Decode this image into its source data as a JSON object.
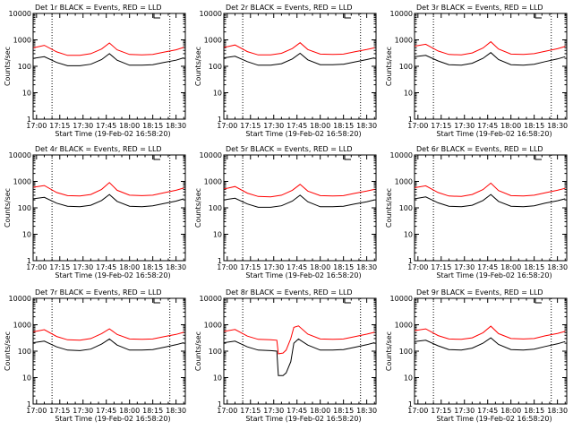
{
  "chart_data": [
    {
      "type": "line",
      "title": "Det 1r BLACK = Events, RED = LLD",
      "xlabel": "Start Time (19-Feb-02 16:58:20)",
      "ylabel": "Counts/sec",
      "x_tick_labels": [
        "17:00",
        "17:15",
        "17:30",
        "17:45",
        "18:00",
        "18:15",
        "18:30"
      ],
      "y_tick_labels": [
        "1",
        "10",
        "100",
        "1000",
        "10000"
      ],
      "x": [
        "16:58",
        "17:05",
        "17:13",
        "17:20",
        "17:28",
        "17:35",
        "17:42",
        "17:47",
        "17:52",
        "18:00",
        "18:08",
        "18:15",
        "18:22",
        "18:30",
        "18:35"
      ],
      "series": [
        {
          "color": "#000000",
          "values": [
            200,
            230,
            140,
            105,
            105,
            120,
            180,
            300,
            170,
            110,
            110,
            115,
            140,
            170,
            210
          ]
        },
        {
          "color": "#ff0000",
          "values": [
            500,
            620,
            350,
            260,
            260,
            300,
            450,
            760,
            420,
            280,
            270,
            280,
            340,
            420,
            520
          ]
        }
      ],
      "ylim": [
        1,
        10000
      ],
      "yscale": "log",
      "dotted_vlines": [
        "17:10",
        "18:26"
      ]
    },
    {
      "type": "line",
      "title": "Det 2r BLACK = Events, RED = LLD",
      "xlabel": "Start Time (19-Feb-02 16:58:20)",
      "ylabel": "Counts/sec",
      "x_tick_labels": [
        "17:00",
        "17:15",
        "17:30",
        "17:45",
        "18:00",
        "18:15",
        "18:30"
      ],
      "y_tick_labels": [
        "1",
        "10",
        "100",
        "1000",
        "10000"
      ],
      "x": [
        "16:58",
        "17:05",
        "17:13",
        "17:20",
        "17:28",
        "17:35",
        "17:42",
        "17:47",
        "17:52",
        "18:00",
        "18:08",
        "18:15",
        "18:22",
        "18:30",
        "18:35"
      ],
      "series": [
        {
          "color": "#000000",
          "values": [
            210,
            240,
            150,
            110,
            110,
            125,
            190,
            310,
            175,
            115,
            115,
            120,
            145,
            180,
            210
          ]
        },
        {
          "color": "#ff0000",
          "values": [
            520,
            640,
            360,
            270,
            270,
            310,
            470,
            780,
            430,
            290,
            280,
            290,
            350,
            430,
            500
          ]
        }
      ],
      "ylim": [
        1,
        10000
      ],
      "yscale": "log",
      "dotted_vlines": [
        "17:10",
        "18:26"
      ]
    },
    {
      "type": "line",
      "title": "Det 3r BLACK = Events, RED = LLD",
      "xlabel": "Start Time (19-Feb-02 16:58:20)",
      "ylabel": "Counts/sec",
      "x_tick_labels": [
        "17:00",
        "17:15",
        "17:30",
        "17:45",
        "18:00",
        "18:15",
        "18:30"
      ],
      "y_tick_labels": [
        "1",
        "10",
        "100",
        "1000",
        "10000"
      ],
      "x": [
        "16:58",
        "17:05",
        "17:13",
        "17:20",
        "17:28",
        "17:35",
        "17:42",
        "17:47",
        "17:52",
        "18:00",
        "18:08",
        "18:15",
        "18:22",
        "18:30",
        "18:35"
      ],
      "series": [
        {
          "color": "#000000",
          "values": [
            230,
            260,
            160,
            115,
            110,
            130,
            200,
            330,
            180,
            115,
            110,
            120,
            150,
            190,
            230
          ]
        },
        {
          "color": "#ff0000",
          "values": [
            580,
            680,
            380,
            280,
            270,
            320,
            490,
            850,
            450,
            290,
            280,
            300,
            370,
            460,
            560
          ]
        }
      ],
      "ylim": [
        1,
        10000
      ],
      "yscale": "log",
      "dotted_vlines": [
        "17:10",
        "18:26"
      ]
    },
    {
      "type": "line",
      "title": "Det 4r BLACK = Events, RED = LLD",
      "xlabel": "Start Time (19-Feb-02 16:58:20)",
      "ylabel": "Counts/sec",
      "x_tick_labels": [
        "17:00",
        "17:15",
        "17:30",
        "17:45",
        "18:00",
        "18:15",
        "18:30"
      ],
      "y_tick_labels": [
        "1",
        "10",
        "100",
        "1000",
        "10000"
      ],
      "x": [
        "16:58",
        "17:05",
        "17:13",
        "17:20",
        "17:28",
        "17:35",
        "17:42",
        "17:47",
        "17:52",
        "18:00",
        "18:08",
        "18:15",
        "18:22",
        "18:30",
        "18:35"
      ],
      "series": [
        {
          "color": "#000000",
          "values": [
            220,
            250,
            150,
            115,
            110,
            125,
            190,
            320,
            175,
            115,
            110,
            120,
            145,
            180,
            220
          ]
        },
        {
          "color": "#ff0000",
          "values": [
            600,
            700,
            380,
            290,
            280,
            320,
            500,
            900,
            460,
            300,
            290,
            300,
            370,
            460,
            560
          ]
        }
      ],
      "ylim": [
        1,
        10000
      ],
      "yscale": "log",
      "dotted_vlines": [
        "17:10",
        "18:26"
      ]
    },
    {
      "type": "line",
      "title": "Det 5r BLACK = Events, RED = LLD",
      "xlabel": "Start Time (19-Feb-02 16:58:20)",
      "ylabel": "Counts/sec",
      "x_tick_labels": [
        "17:00",
        "17:15",
        "17:30",
        "17:45",
        "18:00",
        "18:15",
        "18:30"
      ],
      "y_tick_labels": [
        "1",
        "10",
        "100",
        "1000",
        "10000"
      ],
      "x": [
        "16:58",
        "17:05",
        "17:13",
        "17:20",
        "17:28",
        "17:35",
        "17:42",
        "17:47",
        "17:52",
        "18:00",
        "18:08",
        "18:15",
        "18:22",
        "18:30",
        "18:35"
      ],
      "series": [
        {
          "color": "#000000",
          "values": [
            200,
            230,
            140,
            105,
            105,
            120,
            180,
            300,
            170,
            110,
            110,
            115,
            140,
            170,
            200
          ]
        },
        {
          "color": "#ff0000",
          "values": [
            520,
            640,
            360,
            270,
            260,
            300,
            460,
            770,
            430,
            290,
            280,
            290,
            350,
            430,
            500
          ]
        }
      ],
      "ylim": [
        1,
        10000
      ],
      "yscale": "log",
      "dotted_vlines": [
        "17:10",
        "18:26"
      ]
    },
    {
      "type": "line",
      "title": "Det 6r BLACK = Events, RED = LLD",
      "xlabel": "Start Time (19-Feb-02 16:58:20)",
      "ylabel": "Counts/sec",
      "x_tick_labels": [
        "17:00",
        "17:15",
        "17:30",
        "17:45",
        "18:00",
        "18:15",
        "18:30"
      ],
      "y_tick_labels": [
        "1",
        "10",
        "100",
        "1000",
        "10000"
      ],
      "x": [
        "16:58",
        "17:05",
        "17:13",
        "17:20",
        "17:28",
        "17:35",
        "17:42",
        "17:47",
        "17:52",
        "18:00",
        "18:08",
        "18:15",
        "18:22",
        "18:30",
        "18:35"
      ],
      "series": [
        {
          "color": "#000000",
          "values": [
            220,
            260,
            155,
            115,
            110,
            125,
            190,
            320,
            175,
            115,
            110,
            120,
            150,
            185,
            220
          ]
        },
        {
          "color": "#ff0000",
          "values": [
            580,
            680,
            380,
            280,
            270,
            320,
            490,
            860,
            450,
            290,
            280,
            300,
            370,
            460,
            550
          ]
        }
      ],
      "ylim": [
        1,
        10000
      ],
      "yscale": "log",
      "dotted_vlines": [
        "17:10",
        "18:26"
      ]
    },
    {
      "type": "line",
      "title": "Det 7r BLACK = Events, RED = LLD",
      "xlabel": "Start Time (19-Feb-02 16:58:20)",
      "ylabel": "Counts/sec",
      "x_tick_labels": [
        "17:00",
        "17:15",
        "17:30",
        "17:45",
        "18:00",
        "18:15",
        "18:30"
      ],
      "y_tick_labels": [
        "1",
        "10",
        "100",
        "1000",
        "10000"
      ],
      "x": [
        "16:58",
        "17:05",
        "17:13",
        "17:20",
        "17:28",
        "17:35",
        "17:42",
        "17:47",
        "17:52",
        "18:00",
        "18:08",
        "18:15",
        "18:22",
        "18:30",
        "18:35"
      ],
      "series": [
        {
          "color": "#000000",
          "values": [
            210,
            240,
            145,
            110,
            105,
            120,
            185,
            290,
            170,
            110,
            110,
            115,
            140,
            175,
            210
          ]
        },
        {
          "color": "#ff0000",
          "values": [
            540,
            650,
            360,
            270,
            260,
            300,
            460,
            700,
            430,
            290,
            280,
            290,
            350,
            430,
            520
          ]
        }
      ],
      "ylim": [
        1,
        10000
      ],
      "yscale": "log",
      "dotted_vlines": [
        "17:10",
        "18:26"
      ]
    },
    {
      "type": "line",
      "title": "Det 8r BLACK = Events, RED = LLD",
      "xlabel": "Start Time (19-Feb-02 16:58:20)",
      "ylabel": "Counts/sec",
      "x_tick_labels": [
        "17:00",
        "17:15",
        "17:30",
        "17:45",
        "18:00",
        "18:15",
        "18:30"
      ],
      "y_tick_labels": [
        "1",
        "10",
        "100",
        "1000",
        "10000"
      ],
      "x": [
        "16:58",
        "17:05",
        "17:13",
        "17:20",
        "17:28",
        "17:32",
        "17:33",
        "17:36",
        "17:38",
        "17:41",
        "17:43",
        "17:46",
        "17:52",
        "18:00",
        "18:08",
        "18:15",
        "18:22",
        "18:30",
        "18:35"
      ],
      "series": [
        {
          "color": "#000000",
          "values": [
            210,
            240,
            145,
            110,
            105,
            100,
            12,
            12,
            15,
            40,
            200,
            290,
            170,
            110,
            110,
            115,
            140,
            175,
            210
          ]
        },
        {
          "color": "#ff0000",
          "values": [
            560,
            660,
            370,
            280,
            270,
            260,
            80,
            85,
            110,
            300,
            800,
            900,
            440,
            290,
            280,
            290,
            350,
            440,
            520
          ]
        }
      ],
      "ylim": [
        1,
        10000
      ],
      "yscale": "log",
      "dotted_vlines": [
        "17:10",
        "18:26"
      ]
    },
    {
      "type": "line",
      "title": "Det 9r BLACK = Events, RED = LLD",
      "xlabel": "Start Time (19-Feb-02 16:58:20)",
      "ylabel": "Counts/sec",
      "x_tick_labels": [
        "17:00",
        "17:15",
        "17:30",
        "17:45",
        "18:00",
        "18:15",
        "18:30"
      ],
      "y_tick_labels": [
        "1",
        "10",
        "100",
        "1000",
        "10000"
      ],
      "x": [
        "16:58",
        "17:05",
        "17:13",
        "17:20",
        "17:28",
        "17:35",
        "17:42",
        "17:47",
        "17:52",
        "18:00",
        "18:08",
        "18:15",
        "18:22",
        "18:30",
        "18:35"
      ],
      "series": [
        {
          "color": "#000000",
          "values": [
            230,
            260,
            160,
            115,
            110,
            130,
            200,
            320,
            180,
            115,
            110,
            120,
            150,
            190,
            230
          ]
        },
        {
          "color": "#ff0000",
          "values": [
            600,
            700,
            390,
            290,
            280,
            320,
            500,
            880,
            460,
            300,
            290,
            300,
            380,
            470,
            560
          ]
        }
      ],
      "ylim": [
        1,
        10000
      ],
      "yscale": "log",
      "dotted_vlines": [
        "17:10",
        "18:26"
      ]
    }
  ]
}
